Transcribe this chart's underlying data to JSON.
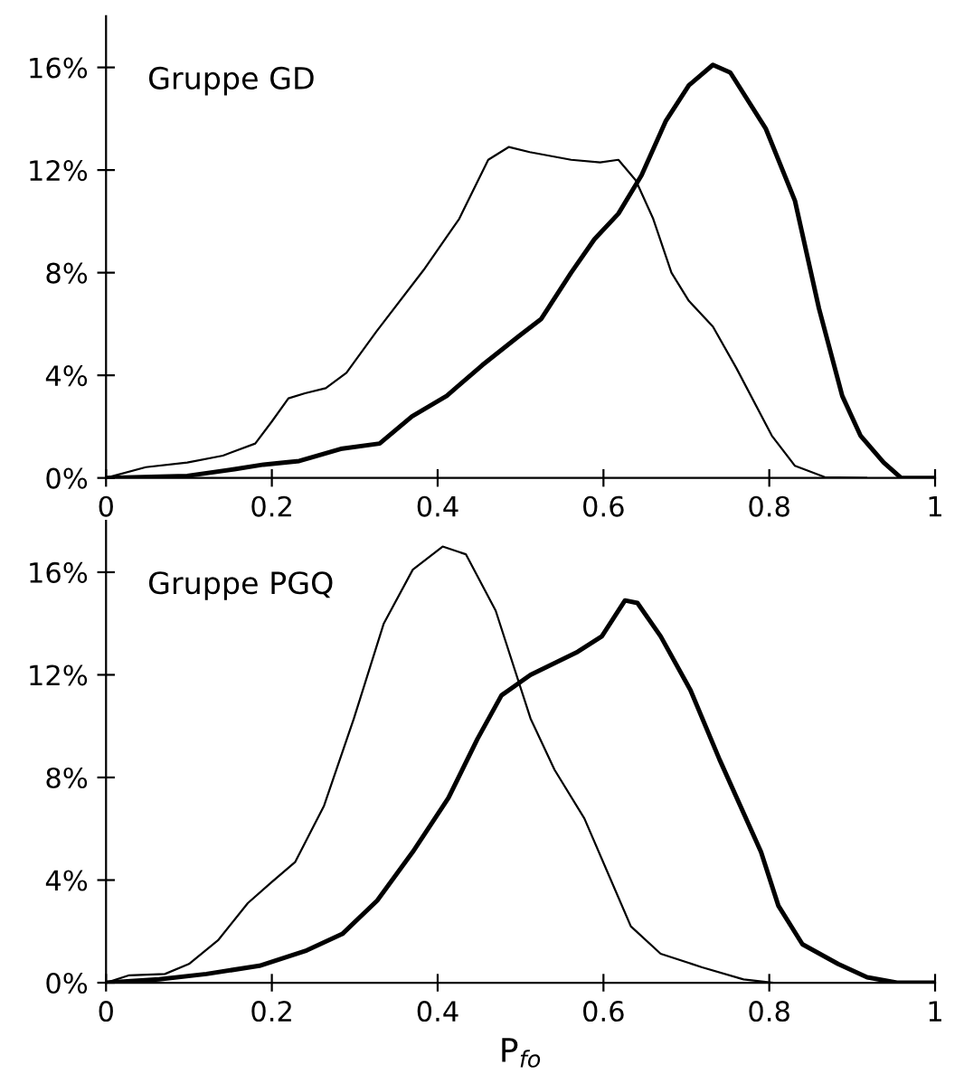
{
  "chart_data": [
    {
      "type": "line",
      "annotations": [
        "Gruppe GD"
      ],
      "xlim": [
        0,
        1
      ],
      "xticks": [
        0,
        0.2,
        0.4,
        0.6,
        0.8,
        1
      ],
      "ylim": [
        0,
        18
      ],
      "yticks": [
        {
          "value": 0,
          "label": "0%"
        },
        {
          "value": 4,
          "label": "4%"
        },
        {
          "value": 8,
          "label": "8%"
        },
        {
          "value": 12,
          "label": "12%"
        },
        {
          "value": 16,
          "label": "16%"
        }
      ],
      "grid": false,
      "legend": false,
      "marker": "none",
      "line_style": "solid",
      "series": [
        {
          "color": "#000000",
          "x": [
            0,
            0.048,
            0.098,
            0.141,
            0.18,
            0.2,
            0.22,
            0.24,
            0.265,
            0.29,
            0.326,
            0.383,
            0.426,
            0.461,
            0.486,
            0.511,
            0.561,
            0.596,
            0.618,
            0.639,
            0.66,
            0.682,
            0.703,
            0.732,
            0.76,
            0.803,
            0.831,
            0.867,
            0.917
          ],
          "values": [
            0,
            0.42,
            0.6,
            0.87,
            1.34,
            2.2,
            3.1,
            3.3,
            3.5,
            4.1,
            5.7,
            8.1,
            10.1,
            12.4,
            12.9,
            12.7,
            12.4,
            12.3,
            12.4,
            11.6,
            10.1,
            8.0,
            6.9,
            5.9,
            4.3,
            1.65,
            0.47,
            0.03,
            0
          ]
        },
        {
          "color": "#000000",
          "x": [
            0,
            0.098,
            0.155,
            0.19,
            0.233,
            0.283,
            0.33,
            0.369,
            0.411,
            0.454,
            0.497,
            0.525,
            0.561,
            0.589,
            0.618,
            0.646,
            0.675,
            0.703,
            0.732,
            0.753,
            0.796,
            0.831,
            0.86,
            0.888,
            0.91,
            0.938,
            0.959,
            1.0
          ],
          "values": [
            0,
            0.08,
            0.34,
            0.52,
            0.66,
            1.13,
            1.34,
            2.4,
            3.2,
            4.4,
            5.5,
            6.2,
            8.0,
            9.3,
            10.3,
            11.8,
            13.9,
            15.3,
            16.1,
            15.8,
            13.6,
            10.8,
            6.6,
            3.2,
            1.65,
            0.6,
            0,
            0
          ]
        }
      ]
    },
    {
      "type": "line",
      "annotations": [
        "Gruppe PGQ"
      ],
      "xlabel": "P$_{fo}$",
      "xlim": [
        0,
        1
      ],
      "xticks": [
        0,
        0.2,
        0.4,
        0.6,
        0.8,
        1
      ],
      "ylim": [
        0,
        18
      ],
      "yticks": [
        {
          "value": 0,
          "label": "0%"
        },
        {
          "value": 4,
          "label": "4%"
        },
        {
          "value": 8,
          "label": "8%"
        },
        {
          "value": 12,
          "label": "12%"
        },
        {
          "value": 16,
          "label": "16%"
        }
      ],
      "grid": false,
      "legend": false,
      "marker": "none",
      "line_style": "solid",
      "series": [
        {
          "color": "#000000",
          "x": [
            0,
            0.028,
            0.071,
            0.1,
            0.135,
            0.171,
            0.199,
            0.228,
            0.263,
            0.299,
            0.335,
            0.37,
            0.406,
            0.434,
            0.47,
            0.512,
            0.541,
            0.577,
            0.605,
            0.633,
            0.669,
            0.719,
            0.769,
            0.804
          ],
          "values": [
            0,
            0.29,
            0.34,
            0.73,
            1.65,
            3.1,
            3.9,
            4.7,
            6.9,
            10.3,
            14.0,
            16.1,
            17.0,
            16.7,
            14.5,
            10.3,
            8.3,
            6.4,
            4.3,
            2.2,
            1.13,
            0.6,
            0.13,
            0
          ]
        },
        {
          "color": "#000000",
          "x": [
            0,
            0.064,
            0.121,
            0.185,
            0.242,
            0.285,
            0.327,
            0.37,
            0.413,
            0.448,
            0.477,
            0.512,
            0.569,
            0.598,
            0.626,
            0.641,
            0.669,
            0.705,
            0.74,
            0.79,
            0.811,
            0.84,
            0.883,
            0.918,
            0.954,
            1.0
          ],
          "values": [
            0,
            0.13,
            0.34,
            0.66,
            1.26,
            1.9,
            3.2,
            5.1,
            7.2,
            9.5,
            11.2,
            12.0,
            12.9,
            13.5,
            14.9,
            14.8,
            13.5,
            11.4,
            8.7,
            5.1,
            3.0,
            1.5,
            0.73,
            0.21,
            0,
            0
          ]
        }
      ]
    }
  ]
}
